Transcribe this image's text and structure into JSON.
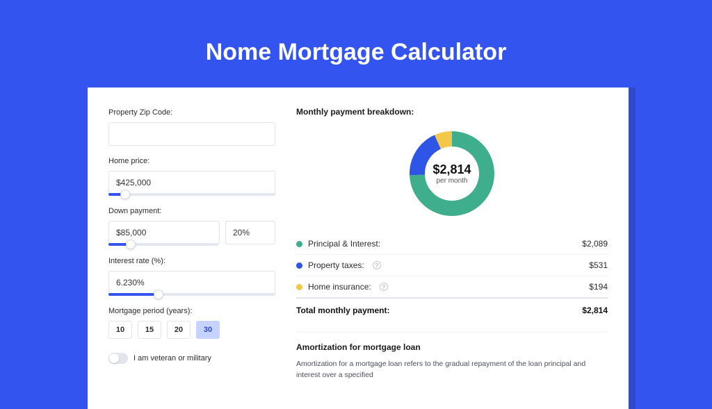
{
  "title": "Nome Mortgage Calculator",
  "colors": {
    "page_bg": "#3354ee",
    "card_bg": "#ffffff",
    "accent": "#3354ee",
    "card_shadow": "#2f49c9"
  },
  "form": {
    "zip": {
      "label": "Property Zip Code:",
      "value": ""
    },
    "home_price": {
      "label": "Home price:",
      "value": "$425,000",
      "slider_pct": 10
    },
    "down_payment": {
      "label": "Down payment:",
      "value": "$85,000",
      "pct_value": "20%",
      "slider_pct": 20
    },
    "interest_rate": {
      "label": "Interest rate (%):",
      "value": "6.230%",
      "slider_pct": 30
    },
    "mortgage_period": {
      "label": "Mortgage period (years):",
      "options": [
        "10",
        "15",
        "20",
        "30"
      ],
      "selected_index": 3
    },
    "veteran": {
      "label": "I am veteran or military",
      "checked": false
    }
  },
  "breakdown": {
    "title": "Monthly payment breakdown:",
    "donut": {
      "center_amount": "$2,814",
      "center_sub": "per month",
      "radius": 50,
      "stroke_width": 22,
      "background": "#ffffff",
      "slices": [
        {
          "name": "principal_interest",
          "value": 2089,
          "color": "#3fae8c"
        },
        {
          "name": "property_taxes",
          "value": 531,
          "color": "#2f55e6"
        },
        {
          "name": "home_insurance",
          "value": 194,
          "color": "#f2c84b"
        }
      ]
    },
    "rows": [
      {
        "label": "Principal & Interest:",
        "amount": "$2,089",
        "color": "#3fae8c",
        "help": false
      },
      {
        "label": "Property taxes:",
        "amount": "$531",
        "color": "#2f55e6",
        "help": true
      },
      {
        "label": "Home insurance:",
        "amount": "$194",
        "color": "#f2c84b",
        "help": true
      }
    ],
    "total": {
      "label": "Total monthly payment:",
      "amount": "$2,814"
    }
  },
  "amortization": {
    "title": "Amortization for mortgage loan",
    "body": "Amortization for a mortgage loan refers to the gradual repayment of the loan principal and interest over a specified"
  }
}
